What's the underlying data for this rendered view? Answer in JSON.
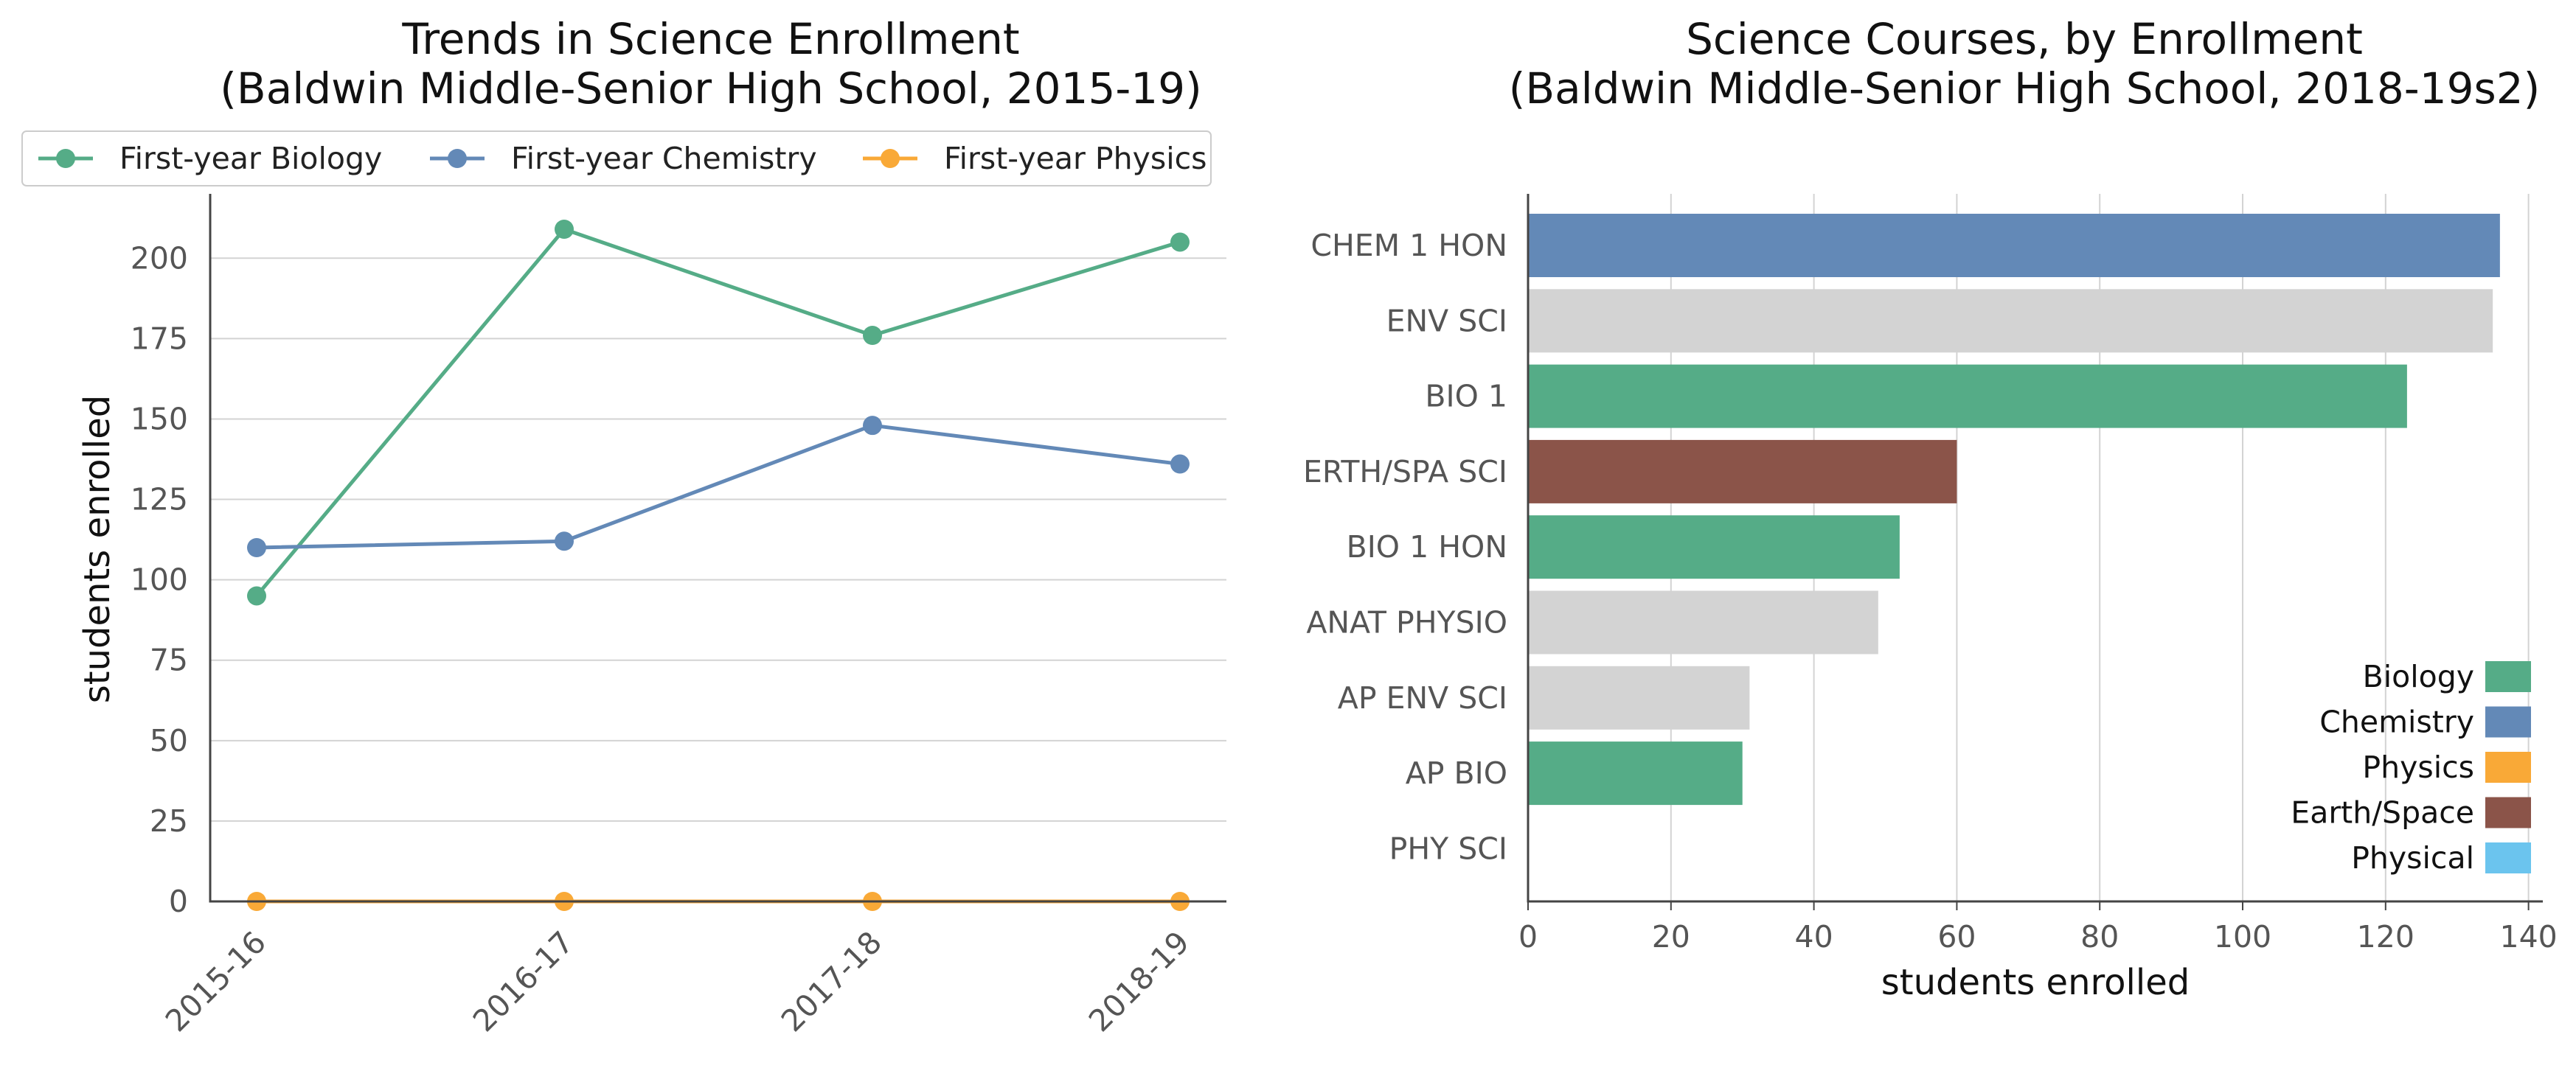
{
  "colors": {
    "biology": "#55ac87",
    "chemistry": "#6389b7",
    "physics": "#f9a937",
    "earth_space": "#8b5449",
    "physical": "#6bc4ee",
    "other": "#d3d3d3"
  },
  "chart_data": [
    {
      "type": "line",
      "title": "Trends in Science Enrollment\n(Baldwin Middle-Senior High School, 2015-19)",
      "title_lines": [
        "Trends in Science Enrollment",
        "(Baldwin Middle-Senior High School, 2015-19)"
      ],
      "xlabel": "",
      "ylabel": "students enrolled",
      "categories": [
        "2015-16",
        "2016-17",
        "2017-18",
        "2018-19"
      ],
      "ylim": [
        0,
        220
      ],
      "yticks": [
        0,
        25,
        50,
        75,
        100,
        125,
        150,
        175,
        200
      ],
      "grid": "horizontal",
      "legend": "top (above plot)",
      "series": [
        {
          "name": "First-year Biology",
          "values": [
            95,
            209,
            176,
            205
          ],
          "color": "#55ac87"
        },
        {
          "name": "First-year Chemistry",
          "values": [
            110,
            112,
            148,
            136
          ],
          "color": "#6389b7"
        },
        {
          "name": "First-year Physics",
          "values": [
            0,
            0,
            0,
            0
          ],
          "color": "#f9a937"
        }
      ]
    },
    {
      "type": "bar",
      "orientation": "horizontal",
      "title": "Science Courses, by Enrollment\n(Baldwin Middle-Senior High School, 2018-19s2)",
      "title_lines": [
        "Science Courses, by Enrollment",
        "(Baldwin Middle-Senior High School, 2018-19s2)"
      ],
      "xlabel": "students enrolled",
      "ylabel": "",
      "xlim": [
        0,
        142
      ],
      "xticks": [
        0,
        20,
        40,
        60,
        80,
        100,
        120,
        140
      ],
      "grid": "vertical",
      "legend": "bottom-right",
      "categories": [
        "CHEM 1 HON",
        "ENV SCI",
        "BIO 1",
        "ERTH/SPA SCI",
        "BIO 1 HON",
        "ANAT PHYSIO",
        "AP ENV SCI",
        "AP BIO",
        "PHY SCI"
      ],
      "values": [
        136,
        135,
        123,
        60,
        52,
        49,
        31,
        30,
        0
      ],
      "bar_colors": [
        "#6389b7",
        "#d3d3d3",
        "#55ac87",
        "#8b5449",
        "#55ac87",
        "#d3d3d3",
        "#d3d3d3",
        "#55ac87",
        "#6bc4ee"
      ],
      "legend_entries": [
        {
          "name": "Biology",
          "color": "#55ac87"
        },
        {
          "name": "Chemistry",
          "color": "#6389b7"
        },
        {
          "name": "Physics",
          "color": "#f9a937"
        },
        {
          "name": "Earth/Space",
          "color": "#8b5449"
        },
        {
          "name": "Physical",
          "color": "#6bc4ee"
        }
      ]
    }
  ]
}
